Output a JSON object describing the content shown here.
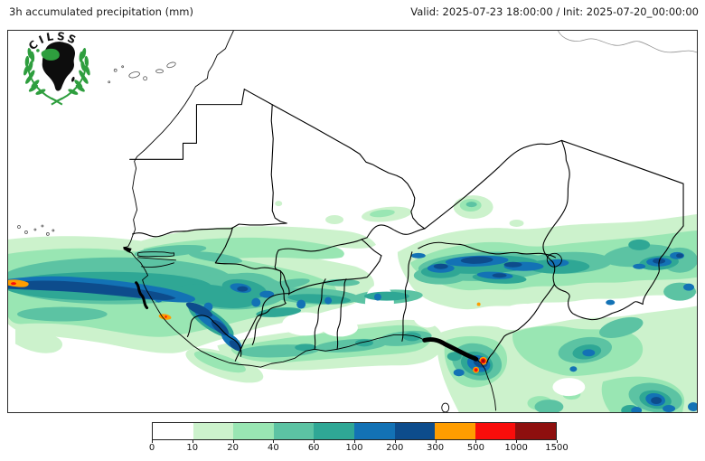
{
  "header": {
    "title": "3h accumulated precipitation (mm)",
    "valid_label": "Valid: 2025-07-23 18:00:00 / Init: 2025-07-20_00:00:00"
  },
  "logo": {
    "org": "CILSS",
    "accent_green": "#2e9e3e"
  },
  "map": {
    "region": "West Africa / Sahel",
    "background": "#ffffff",
    "border_color": "#000000"
  },
  "chart_data": {
    "type": "heatmap",
    "title": "3h accumulated precipitation (mm)",
    "valid_time": "2025-07-23 18:00:00",
    "init_time": "2025-07-20_00:00:00",
    "units": "mm",
    "colorbar": {
      "orientation": "horizontal",
      "levels": [
        0,
        10,
        20,
        40,
        60,
        100,
        200,
        300,
        500,
        1000,
        1500
      ],
      "tick_labels": [
        "0",
        "10",
        "20",
        "40",
        "60",
        "100",
        "200",
        "300",
        "500",
        "1000",
        "1500"
      ],
      "colors": [
        "#ffffff",
        "#ccf2cc",
        "#99e6b3",
        "#5cc3a3",
        "#2fa795",
        "#1372b5",
        "#0d4c8c",
        "#ff9d00",
        "#f90d0b",
        "#8e0f0e"
      ]
    }
  }
}
